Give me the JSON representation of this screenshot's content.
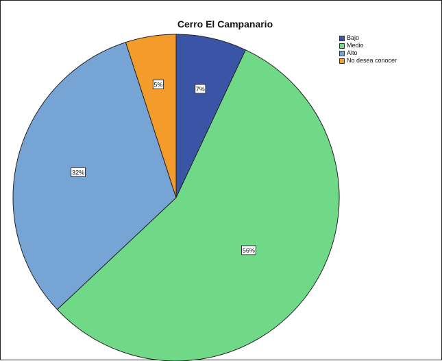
{
  "chart_data": {
    "type": "pie",
    "title": "Cerro El Campanario",
    "legend_placement": "top-right",
    "slices": [
      {
        "label": "Bajo",
        "value": 7,
        "display": "7%",
        "color": "#3b55a6"
      },
      {
        "label": "Medio",
        "value": 56,
        "display": "56%",
        "color": "#6fd987"
      },
      {
        "label": "Alto",
        "value": 32,
        "display": "32%",
        "color": "#76a4d4"
      },
      {
        "label": "No desea conocer",
        "value": 5,
        "display": "5%",
        "color": "#f39c2b"
      }
    ]
  }
}
